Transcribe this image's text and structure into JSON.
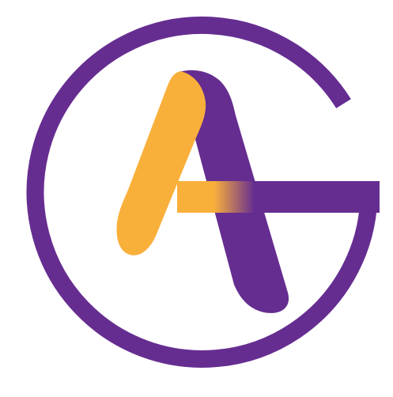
{
  "logo": {
    "monogram": "AG",
    "colors": {
      "primary": "#662D91",
      "accent": "#F9B03B",
      "background": "#FFFFFF"
    }
  }
}
